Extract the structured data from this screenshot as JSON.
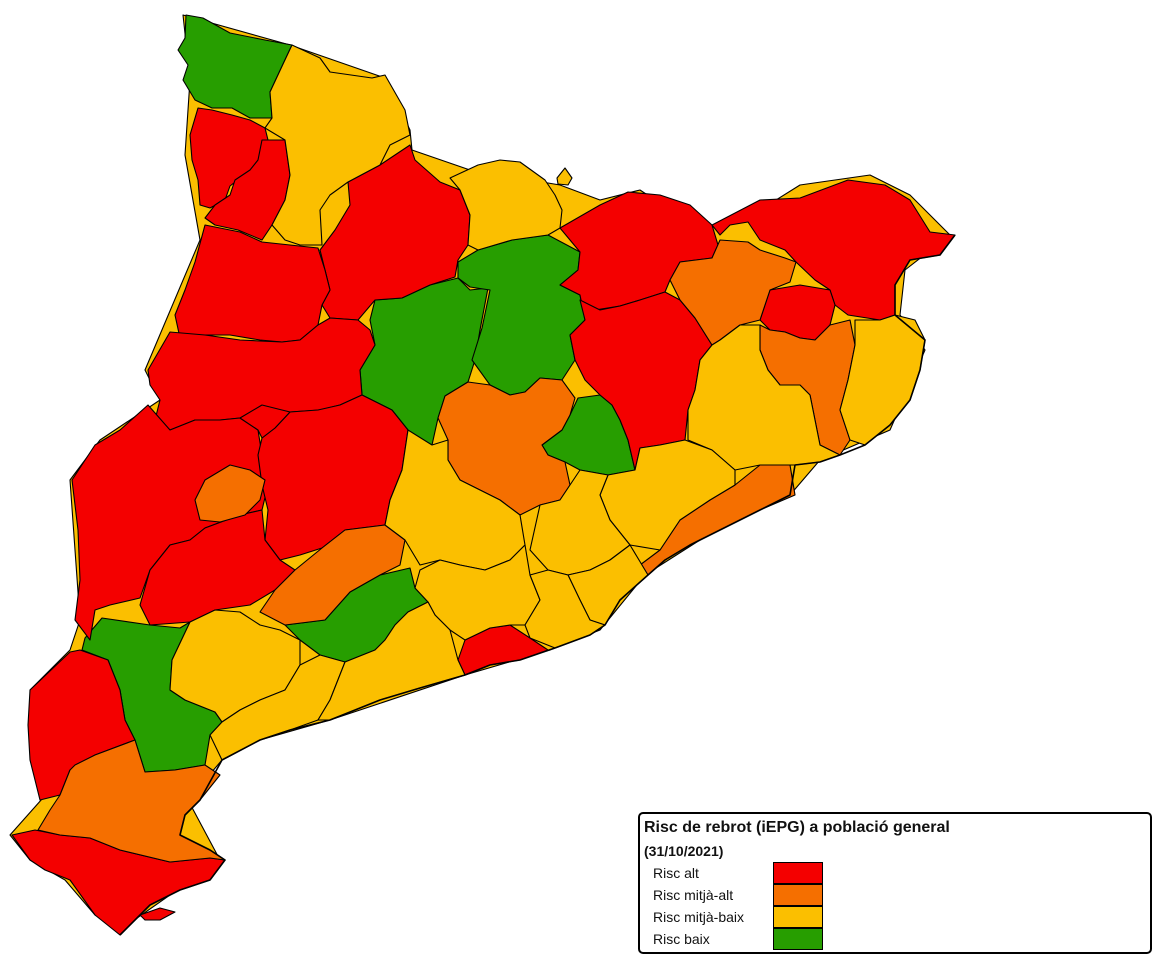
{
  "legend": {
    "title": "Risc de rebrot (iEPG) a població general",
    "subtitle": "(31/10/2021)",
    "items": [
      {
        "label": "Risc alt",
        "color": "#f40000"
      },
      {
        "label": "Risc mitjà-alt",
        "color": "#f56f00"
      },
      {
        "label": "Risc mitjà-baix",
        "color": "#fbbf00"
      },
      {
        "label": "Risc baix",
        "color": "#279e00"
      }
    ]
  },
  "regions_by_risk": {
    "alt": 20,
    "mitja_alt": 8,
    "mitja_baix": 20,
    "baix": 6
  }
}
